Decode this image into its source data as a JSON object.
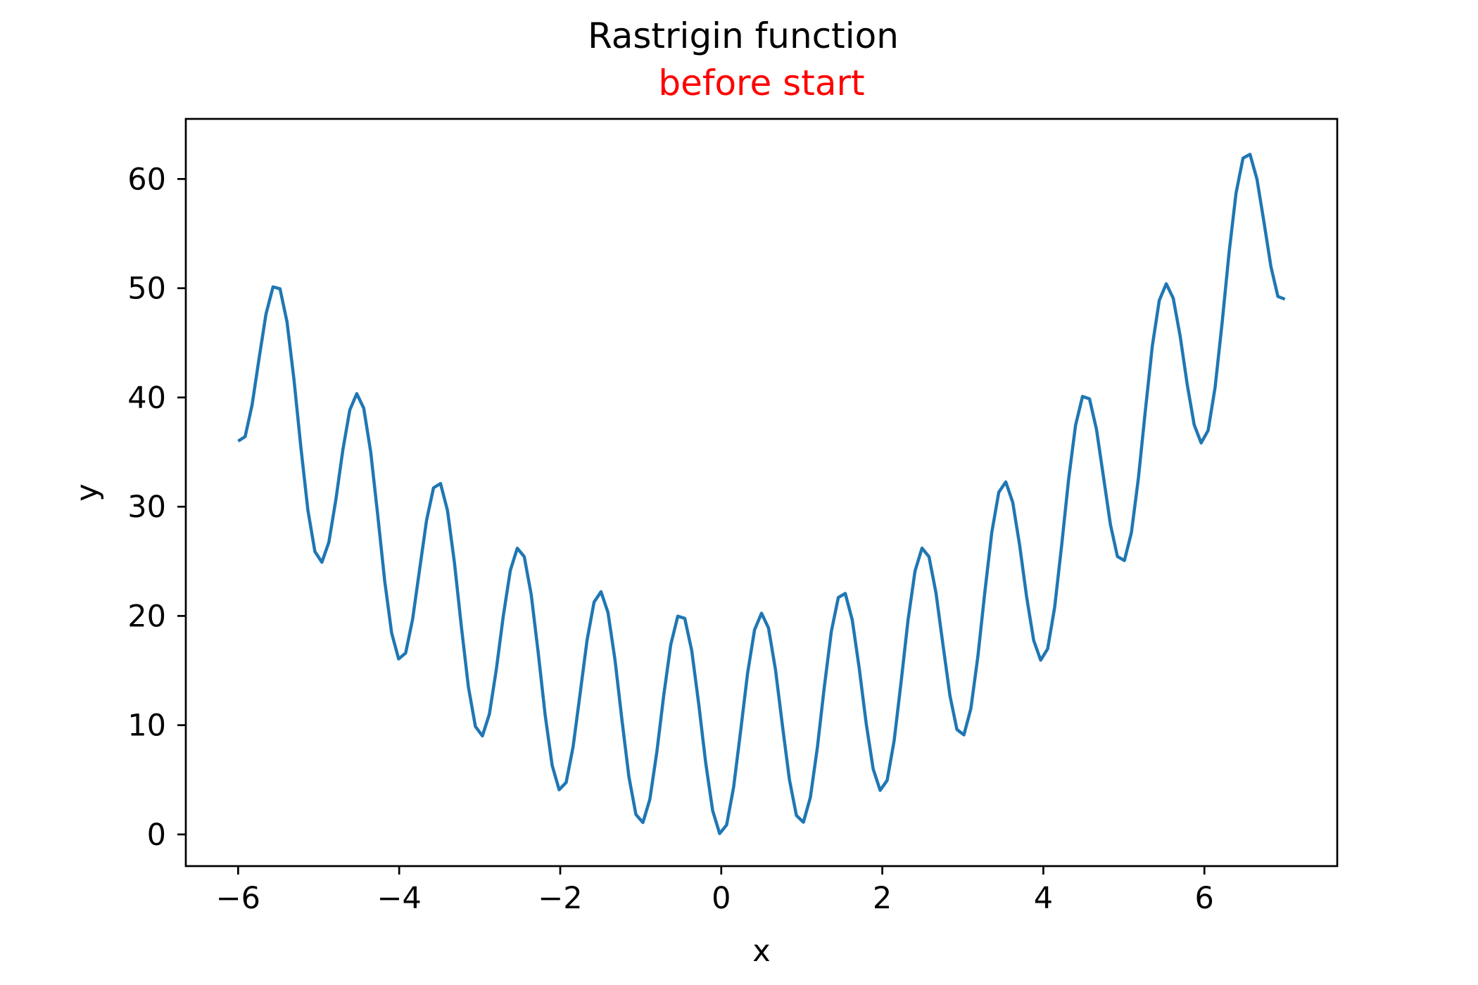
{
  "chart_data": {
    "type": "line",
    "title": "Rastrigin function",
    "subtitle": "before start",
    "subtitle_color": "#ff0000",
    "xlabel": "x",
    "ylabel": "y",
    "xlim": [
      -6.65,
      7.65
    ],
    "ylim": [
      -2.9,
      65.5
    ],
    "x_ticks": [
      -6,
      -4,
      -2,
      0,
      2,
      4,
      6
    ],
    "x_tick_labels": [
      "−6",
      "−4",
      "−2",
      "0",
      "2",
      "4",
      "6"
    ],
    "y_ticks": [
      0,
      10,
      20,
      30,
      40,
      50,
      60
    ],
    "y_tick_labels": [
      "0",
      "10",
      "20",
      "30",
      "40",
      "50",
      "60"
    ],
    "grid": false,
    "series": [
      {
        "color": "#1f77b4",
        "x_start": -6,
        "x_end": 7,
        "n_points": 151,
        "function": "x^2 - 10*cos(2*pi*x) + 10"
      }
    ]
  }
}
